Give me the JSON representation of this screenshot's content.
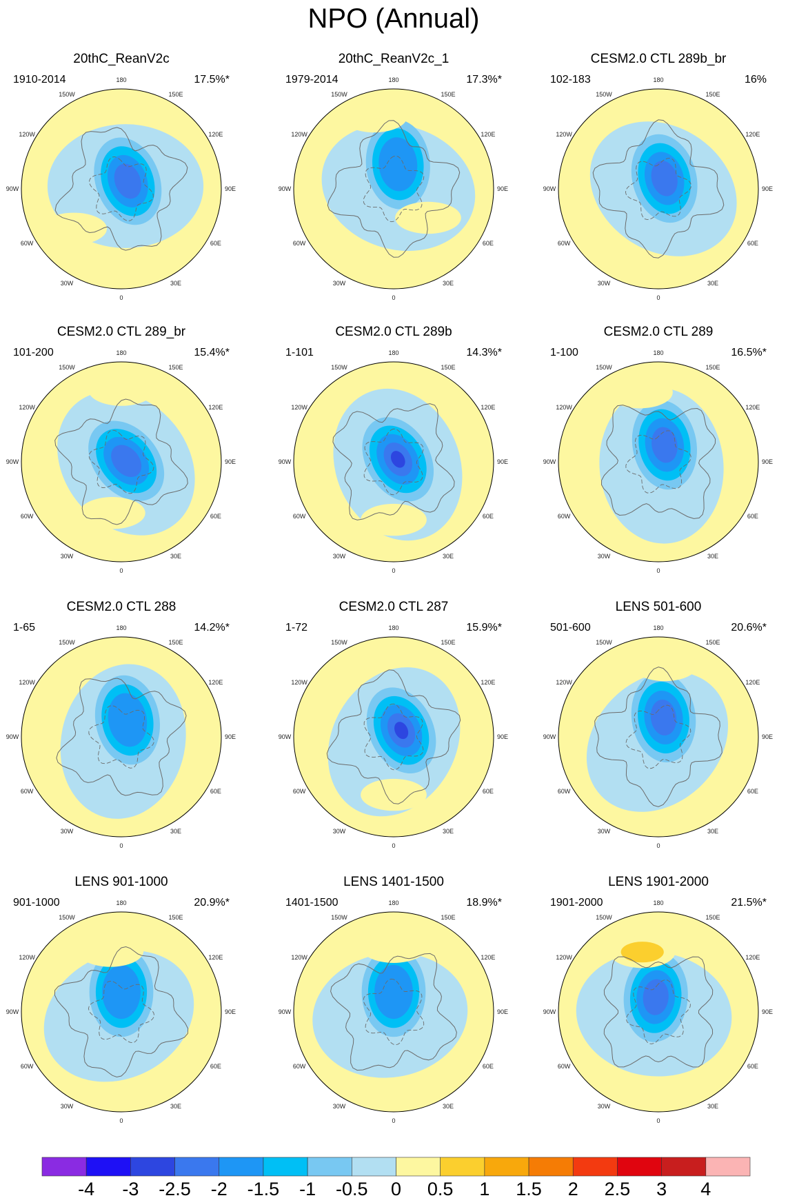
{
  "chart_data": {
    "type": "polar-contour-map",
    "title": "NPO (Annual)",
    "projection": "north polar stereographic",
    "longitude_labels": [
      "180",
      "150W",
      "150E",
      "120W",
      "120E",
      "90W",
      "90E",
      "60W",
      "60E",
      "30W",
      "30E",
      "0"
    ],
    "panels": [
      {
        "title": "20thC_ReanV2c",
        "period": "1910-2014",
        "variance": "17.5%*",
        "features": [
          {
            "sign": "neg",
            "level": -2.0,
            "lon": 140,
            "dist": 0.1
          },
          {
            "sign": "pos",
            "level": 0.5,
            "lon": -50,
            "dist": 0.62
          }
        ]
      },
      {
        "title": "20thC_ReanV2c_1",
        "period": "1979-2014",
        "variance": "17.3%*",
        "features": [
          {
            "sign": "neg",
            "level": -1.5,
            "lon": 170,
            "dist": 0.25
          },
          {
            "sign": "pos",
            "level": 0.5,
            "lon": -165,
            "dist": 0.75
          },
          {
            "sign": "pos",
            "level": 0.5,
            "lon": 50,
            "dist": 0.45
          }
        ]
      },
      {
        "title": "CESM2.0 CTL 289b_br",
        "period": "102-183",
        "variance": "16%",
        "features": [
          {
            "sign": "neg",
            "level": -2.0,
            "lon": 150,
            "dist": 0.12
          }
        ]
      },
      {
        "title": "CESM2.0 CTL 289_br",
        "period": "101-200",
        "variance": "15.4%*",
        "features": [
          {
            "sign": "neg",
            "level": -2.0,
            "lon": 100,
            "dist": 0.05
          },
          {
            "sign": "pos",
            "level": 0.5,
            "lon": 180,
            "dist": 0.72
          },
          {
            "sign": "pos",
            "level": 0.5,
            "lon": -10,
            "dist": 0.52
          }
        ]
      },
      {
        "title": "CESM2.0 CTL 289b",
        "period": "1-101",
        "variance": "14.3%*",
        "features": [
          {
            "sign": "neg",
            "level": -2.5,
            "lon": 120,
            "dist": 0.05
          },
          {
            "sign": "pos",
            "level": 0.5,
            "lon": 0,
            "dist": 0.58
          }
        ]
      },
      {
        "title": "CESM2.0 CTL 289",
        "period": "1-100",
        "variance": "16.5%*",
        "features": [
          {
            "sign": "neg",
            "level": -2.0,
            "lon": 160,
            "dist": 0.18
          },
          {
            "sign": "pos",
            "level": 0.5,
            "lon": -165,
            "dist": 0.72
          }
        ]
      },
      {
        "title": "CESM2.0 CTL 288",
        "period": "1-65",
        "variance": "14.2%*",
        "features": [
          {
            "sign": "neg",
            "level": -1.5,
            "lon": 160,
            "dist": 0.18
          }
        ]
      },
      {
        "title": "CESM2.0 CTL 287",
        "period": "1-72",
        "variance": "15.9%*",
        "features": [
          {
            "sign": "neg",
            "level": -2.5,
            "lon": 130,
            "dist": 0.1
          },
          {
            "sign": "pos",
            "level": 0.5,
            "lon": 0,
            "dist": 0.58
          }
        ]
      },
      {
        "title": "LENS 501-600",
        "period": "501-600",
        "variance": "20.6%*",
        "features": [
          {
            "sign": "neg",
            "level": -2.0,
            "lon": 165,
            "dist": 0.2
          },
          {
            "sign": "pos",
            "level": 0.5,
            "lon": 175,
            "dist": 0.72
          }
        ]
      },
      {
        "title": "LENS 901-1000",
        "period": "901-1000",
        "variance": "20.9%*",
        "features": [
          {
            "sign": "neg",
            "level": -1.5,
            "lon": 180,
            "dist": 0.2
          },
          {
            "sign": "pos",
            "level": 0.5,
            "lon": -170,
            "dist": 0.62
          }
        ]
      },
      {
        "title": "LENS 1401-1500",
        "period": "1401-1500",
        "variance": "18.9%*",
        "features": [
          {
            "sign": "neg",
            "level": -1.5,
            "lon": 180,
            "dist": 0.2
          },
          {
            "sign": "pos",
            "level": 0.5,
            "lon": 180,
            "dist": 0.65
          }
        ]
      },
      {
        "title": "LENS 1901-2000",
        "period": "1901-2000",
        "variance": "21.5%*",
        "features": [
          {
            "sign": "neg",
            "level": -2.0,
            "lon": -170,
            "dist": 0.15
          },
          {
            "sign": "pos",
            "level": 1.0,
            "lon": -165,
            "dist": 0.62
          }
        ]
      }
    ],
    "colorbar": {
      "labels": [
        "-4",
        "-3",
        "-2.5",
        "-2",
        "-1.5",
        "-1",
        "-0.5",
        "0",
        "0.5",
        "1",
        "1.5",
        "2",
        "2.5",
        "3",
        "4"
      ],
      "colors": [
        "#8a2be2",
        "#1e10f5",
        "#2d46e0",
        "#3a78ee",
        "#1e96f5",
        "#00bff5",
        "#78c8f2",
        "#b2dff2",
        "#fdf7a0",
        "#fbcf2e",
        "#f8a80c",
        "#f57c05",
        "#f33a10",
        "#e0050f",
        "#c81e1e",
        "#fbb4b4"
      ]
    }
  }
}
